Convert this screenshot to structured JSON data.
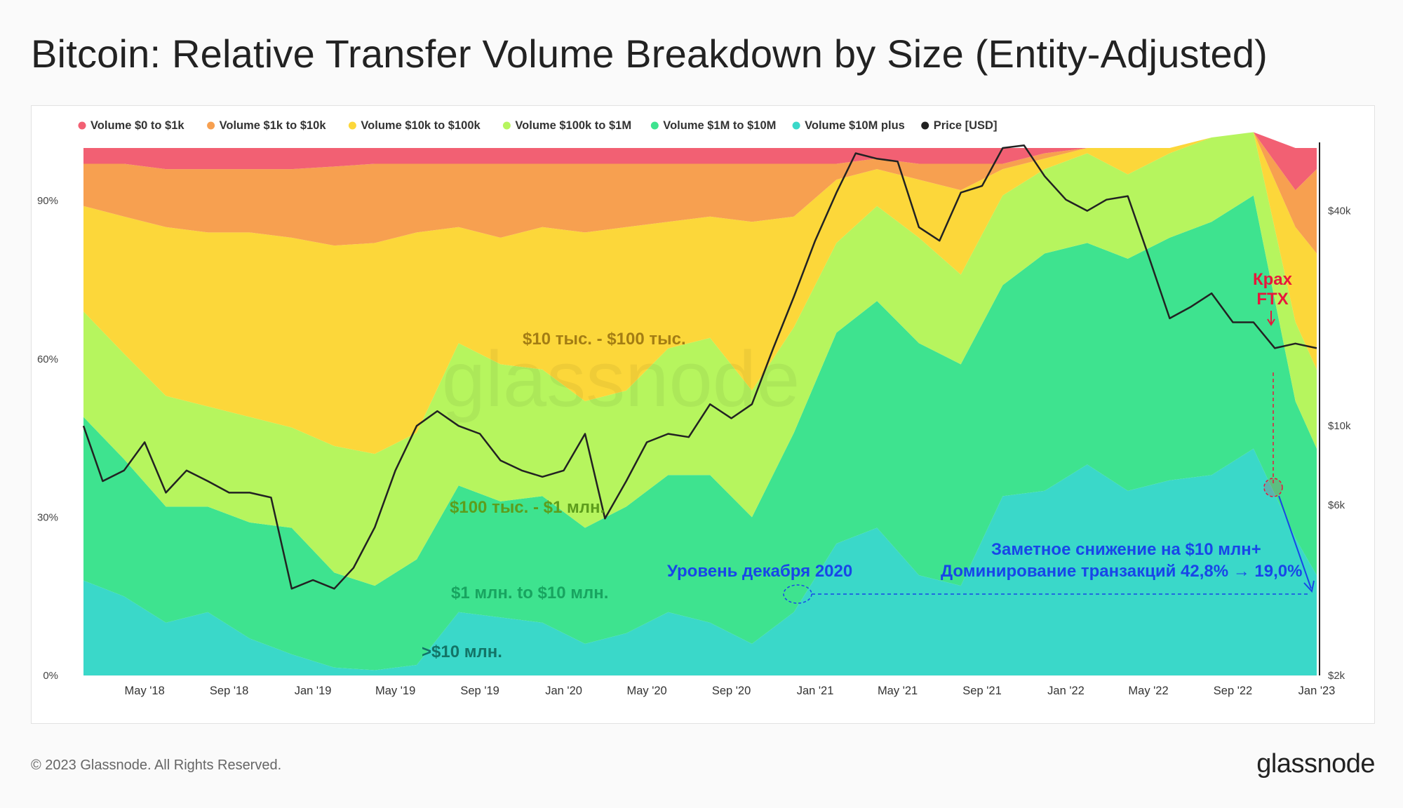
{
  "title": "Bitcoin: Relative Transfer Volume Breakdown by Size (Entity-Adjusted)",
  "footer": {
    "copyright": "© 2023 Glassnode. All Rights Reserved.",
    "logo": "glassnode"
  },
  "chart_data": {
    "type": "area",
    "watermark": "glassnode",
    "x_tick_labels": [
      "May '18",
      "Sep '18",
      "Jan '19",
      "May '19",
      "Sep '19",
      "Jan '20",
      "May '20",
      "Sep '20",
      "Jan '21",
      "May '21",
      "Sep '21",
      "Jan '22",
      "May '22",
      "Sep '22",
      "Jan '23"
    ],
    "x_ticks_date": [
      "2018-05",
      "2018-09",
      "2019-01",
      "2019-05",
      "2019-09",
      "2020-01",
      "2020-05",
      "2020-09",
      "2021-01",
      "2021-05",
      "2021-09",
      "2022-01",
      "2022-05",
      "2022-09",
      "2023-01"
    ],
    "y_left": {
      "tick_labels": [
        "0%",
        "30%",
        "60%",
        "90%"
      ],
      "ticks": [
        0,
        30,
        60,
        90
      ],
      "range": [
        0,
        100
      ]
    },
    "y_right": {
      "scale": "log",
      "tick_labels": [
        "$2k",
        "$6k",
        "$10k",
        "$40k"
      ],
      "ticks": [
        2000,
        6000,
        10000,
        40000
      ]
    },
    "x": [
      "2018-02",
      "2018-04",
      "2018-06",
      "2018-08",
      "2018-10",
      "2018-12",
      "2019-02",
      "2019-04",
      "2019-06",
      "2019-08",
      "2019-10",
      "2019-12",
      "2020-02",
      "2020-04",
      "2020-06",
      "2020-08",
      "2020-10",
      "2020-12",
      "2021-02",
      "2021-04",
      "2021-06",
      "2021-08",
      "2021-10",
      "2021-12",
      "2022-02",
      "2022-04",
      "2022-06",
      "2022-08",
      "2022-10",
      "2022-12",
      "2023-01"
    ],
    "legend": [
      {
        "name": "Volume $0 to $1k",
        "color": "#f26073"
      },
      {
        "name": "Volume $1k to $10k",
        "color": "#f7a050"
      },
      {
        "name": "Volume $10k to $100k",
        "color": "#fcd73a"
      },
      {
        "name": "Volume $100k to $1M",
        "color": "#b6f55e"
      },
      {
        "name": "Volume $1M to $10M",
        "color": "#3ee38f"
      },
      {
        "name": "Volume $10M plus",
        "color": "#3ad8c9"
      },
      {
        "name": "Price [USD]",
        "color": "#222222"
      }
    ],
    "series": [
      {
        "name": "Volume $10M plus",
        "color": "#3ad8c9",
        "values": [
          18,
          15,
          10,
          12,
          7,
          4,
          1.5,
          1,
          2,
          12,
          11,
          10,
          6,
          8,
          12,
          10,
          6,
          12,
          25,
          28,
          19,
          17,
          34,
          35,
          40,
          35,
          37,
          38,
          43,
          26,
          19
        ]
      },
      {
        "name": "Volume $1M to $10M",
        "color": "#3ee38f",
        "values": [
          31,
          26,
          22,
          20,
          22,
          24,
          18,
          16,
          20,
          24,
          22,
          24,
          22,
          24,
          26,
          28,
          24,
          34,
          40,
          43,
          44,
          42,
          40,
          45,
          42,
          44,
          46,
          48,
          48,
          26,
          24
        ]
      },
      {
        "name": "Volume $100k to $1M",
        "color": "#b6f55e",
        "values": [
          20,
          20,
          21,
          19,
          20,
          19,
          24,
          25,
          24,
          27,
          26,
          24,
          24,
          22,
          24,
          26,
          24,
          20,
          17,
          18,
          20,
          17,
          17,
          16,
          17,
          16,
          16,
          16,
          12,
          15,
          15
        ]
      },
      {
        "name": "Volume $10k to $100k",
        "color": "#fcd73a",
        "values": [
          20,
          26,
          32,
          33,
          35,
          36,
          38,
          40,
          38,
          22,
          24,
          27,
          32,
          31,
          24,
          23,
          32,
          21,
          12,
          7,
          11,
          16,
          5,
          2,
          1,
          5,
          1,
          0,
          0,
          18,
          22
        ]
      },
      {
        "name": "Volume $1k to $10k",
        "color": "#f7a050",
        "values": [
          8,
          10,
          11,
          12,
          12,
          13,
          15,
          15,
          13,
          12,
          14,
          12,
          13,
          12,
          11,
          10,
          11,
          10,
          3,
          2,
          3,
          5,
          1,
          1,
          0,
          0,
          0,
          0,
          0,
          7,
          16
        ]
      },
      {
        "name": "Volume $0 to $1k",
        "color": "#f26073",
        "values": [
          3,
          3,
          4,
          4,
          4,
          4,
          3.5,
          3,
          3,
          3,
          3,
          3,
          3,
          3,
          3,
          3,
          3,
          3,
          3,
          2,
          3,
          3,
          3,
          1,
          0,
          0,
          0,
          0,
          0,
          8,
          4
        ]
      }
    ],
    "price": {
      "name": "Price [USD]",
      "color": "#222222",
      "x": [
        "2018-02-01",
        "2018-03-01",
        "2018-04-01",
        "2018-05-01",
        "2018-06-01",
        "2018-07-01",
        "2018-08-01",
        "2018-09-01",
        "2018-10-01",
        "2018-11-01",
        "2018-12-01",
        "2019-01-01",
        "2019-02-01",
        "2019-03-01",
        "2019-04-01",
        "2019-05-01",
        "2019-06-01",
        "2019-07-01",
        "2019-08-01",
        "2019-09-01",
        "2019-10-01",
        "2019-11-01",
        "2019-12-01",
        "2020-01-01",
        "2020-02-01",
        "2020-03-01",
        "2020-04-01",
        "2020-05-01",
        "2020-06-01",
        "2020-07-01",
        "2020-08-01",
        "2020-09-01",
        "2020-10-01",
        "2020-11-01",
        "2020-12-01",
        "2021-01-01",
        "2021-02-01",
        "2021-03-01",
        "2021-04-01",
        "2021-05-01",
        "2021-06-01",
        "2021-07-01",
        "2021-08-01",
        "2021-09-01",
        "2021-10-01",
        "2021-11-01",
        "2021-12-01",
        "2022-01-01",
        "2022-02-01",
        "2022-03-01",
        "2022-04-01",
        "2022-05-01",
        "2022-06-01",
        "2022-07-01",
        "2022-08-01",
        "2022-09-01",
        "2022-10-01",
        "2022-11-01",
        "2022-12-01",
        "2023-01-01"
      ],
      "values": [
        10000,
        7000,
        7500,
        9000,
        6500,
        7500,
        7000,
        6500,
        6500,
        6300,
        3500,
        3700,
        3500,
        4000,
        5200,
        7500,
        10000,
        11000,
        10000,
        9500,
        8000,
        7500,
        7200,
        7500,
        9500,
        5500,
        7000,
        9000,
        9500,
        9300,
        11500,
        10500,
        11500,
        16500,
        23000,
        33000,
        45000,
        58000,
        56000,
        55000,
        36000,
        33000,
        45000,
        47000,
        60000,
        61000,
        50000,
        43000,
        40000,
        43000,
        44000,
        30000,
        20000,
        21500,
        23500,
        19500,
        19500,
        16500,
        17000,
        16500
      ]
    },
    "annotations": [
      {
        "text": "$10 тыс. - $100 тыс.",
        "color": "#a37d14"
      },
      {
        "text": "$100 тыс. - $1 млн.",
        "color": "#5d9d1c"
      },
      {
        "text": "$1 млн. to $10 млн.",
        "color": "#18a460"
      },
      {
        "text": ">$10 млн.",
        "color": "#137467"
      },
      {
        "text": "Уровень декабря 2020",
        "color": "#1846e8"
      },
      {
        "text": "Заметное снижение на $10 млн+",
        "color": "#1846e8"
      },
      {
        "text": "Доминирование транзакций 42,8% → 19,0%",
        "color": "#1846e8"
      },
      {
        "text": "Крах",
        "color": "#e8173c"
      },
      {
        "text": "FTX",
        "color": "#e8173c"
      }
    ]
  }
}
